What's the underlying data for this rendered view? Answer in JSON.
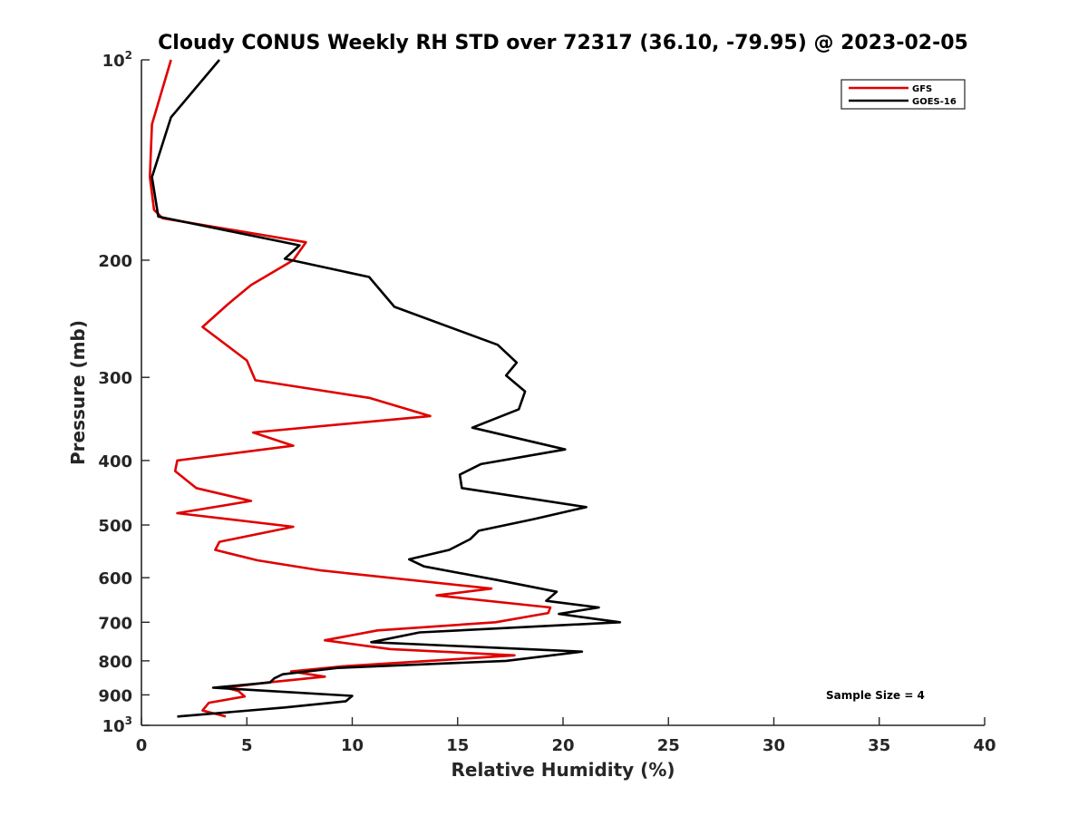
{
  "chart_data": {
    "type": "line",
    "title": "Cloudy CONUS Weekly RH STD over 72317 (36.10, -79.95) @ 2023-02-05",
    "xlabel": "Relative Humidity (%)",
    "ylabel": "Pressure (mb)",
    "xlim": [
      0,
      40
    ],
    "ylim": [
      100,
      1000
    ],
    "y_scale": "log",
    "y_reversed": true,
    "grid": false,
    "legend_position": "top-right",
    "x_ticks": [
      "0",
      "5",
      "10",
      "15",
      "20",
      "25",
      "30",
      "35",
      "40"
    ],
    "y_ticks": [
      {
        "value": 100,
        "base": "10",
        "exp": "2"
      },
      {
        "value": 200,
        "label": "200"
      },
      {
        "value": 300,
        "label": "300"
      },
      {
        "value": 400,
        "label": "400"
      },
      {
        "value": 500,
        "label": "500"
      },
      {
        "value": 600,
        "label": "600"
      },
      {
        "value": 700,
        "label": "700"
      },
      {
        "value": 800,
        "label": "800"
      },
      {
        "value": 900,
        "label": "900"
      },
      {
        "value": 1000,
        "base": "10",
        "exp": "3"
      }
    ],
    "annotation": "Sample Size = 4",
    "series": [
      {
        "name": "GFS",
        "color": "#e00000",
        "points": [
          [
            1.4,
            100
          ],
          [
            0.5,
            125
          ],
          [
            0.4,
            150
          ],
          [
            0.6,
            168
          ],
          [
            1.0,
            173
          ],
          [
            7.8,
            188
          ],
          [
            7.2,
            200
          ],
          [
            5.2,
            218
          ],
          [
            4.1,
            233
          ],
          [
            2.9,
            252
          ],
          [
            5.0,
            283
          ],
          [
            5.4,
            303
          ],
          [
            10.8,
            322
          ],
          [
            13.7,
            343
          ],
          [
            5.3,
            363
          ],
          [
            7.2,
            380
          ],
          [
            1.7,
            400
          ],
          [
            1.6,
            415
          ],
          [
            2.6,
            440
          ],
          [
            5.2,
            460
          ],
          [
            1.7,
            480
          ],
          [
            7.2,
            503
          ],
          [
            3.7,
            530
          ],
          [
            3.5,
            545
          ],
          [
            5.5,
            565
          ],
          [
            8.5,
            585
          ],
          [
            16.6,
            623
          ],
          [
            14.0,
            638
          ],
          [
            19.4,
            665
          ],
          [
            19.3,
            678
          ],
          [
            16.8,
            700
          ],
          [
            11.2,
            720
          ],
          [
            8.7,
            745
          ],
          [
            11.8,
            768
          ],
          [
            17.7,
            785
          ],
          [
            15.0,
            795
          ],
          [
            9.6,
            815
          ],
          [
            7.1,
            830
          ],
          [
            8.7,
            845
          ],
          [
            6.0,
            862
          ],
          [
            4.0,
            878
          ],
          [
            4.6,
            888
          ],
          [
            4.9,
            905
          ],
          [
            3.2,
            925
          ],
          [
            2.9,
            950
          ],
          [
            4.0,
            970
          ]
        ]
      },
      {
        "name": "GOES-16",
        "color": "#000000",
        "points": [
          [
            3.7,
            100
          ],
          [
            1.4,
            122
          ],
          [
            0.5,
            150
          ],
          [
            0.8,
            172
          ],
          [
            7.5,
            190
          ],
          [
            6.8,
            199
          ],
          [
            10.8,
            212
          ],
          [
            12.0,
            235
          ],
          [
            16.9,
            268
          ],
          [
            17.8,
            285
          ],
          [
            17.3,
            298
          ],
          [
            18.2,
            315
          ],
          [
            17.9,
            335
          ],
          [
            15.7,
            357
          ],
          [
            20.1,
            385
          ],
          [
            16.1,
            405
          ],
          [
            15.1,
            420
          ],
          [
            15.2,
            440
          ],
          [
            21.1,
            470
          ],
          [
            18.6,
            490
          ],
          [
            16.0,
            510
          ],
          [
            15.6,
            525
          ],
          [
            14.6,
            545
          ],
          [
            12.7,
            563
          ],
          [
            13.4,
            577
          ],
          [
            16.9,
            605
          ],
          [
            19.7,
            630
          ],
          [
            19.2,
            650
          ],
          [
            21.7,
            665
          ],
          [
            19.8,
            680
          ],
          [
            22.7,
            700
          ],
          [
            13.2,
            725
          ],
          [
            10.9,
            750
          ],
          [
            20.9,
            775
          ],
          [
            17.3,
            800
          ],
          [
            9.3,
            820
          ],
          [
            6.7,
            838
          ],
          [
            6.3,
            850
          ],
          [
            6.1,
            862
          ],
          [
            3.4,
            878
          ],
          [
            10.0,
            903
          ],
          [
            9.7,
            920
          ],
          [
            6.8,
            940
          ],
          [
            1.7,
            970
          ]
        ]
      }
    ]
  }
}
